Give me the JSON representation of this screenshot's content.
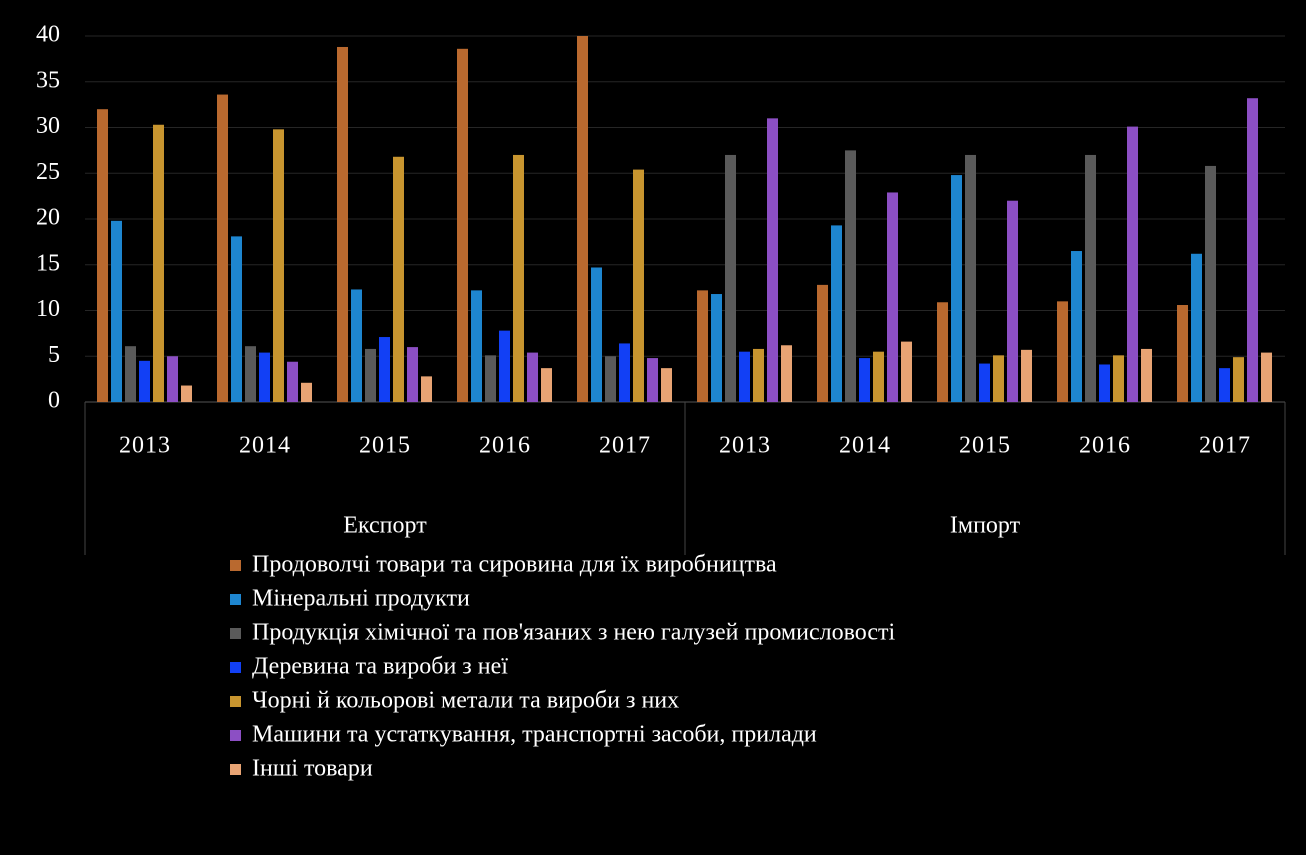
{
  "chart_data": {
    "type": "bar",
    "groups": [
      {
        "name": "Експорт",
        "categories": [
          "2013",
          "2014",
          "2015",
          "2016",
          "2017"
        ]
      },
      {
        "name": "Імпорт",
        "categories": [
          "2013",
          "2014",
          "2015",
          "2016",
          "2017"
        ]
      }
    ],
    "series": [
      {
        "name": "Продоволчі товари та сировина для їх виробництва",
        "color": "#b9692f",
        "values": [
          32,
          33.6,
          38.8,
          38.6,
          40,
          12.2,
          12.8,
          10.9,
          11,
          10.6
        ]
      },
      {
        "name": "Мінеральні продукти",
        "color": "#1e86d0",
        "values": [
          19.8,
          18.1,
          12.3,
          12.2,
          14.7,
          11.8,
          19.3,
          24.8,
          16.5,
          16.2
        ]
      },
      {
        "name": "Продукція хімічної та пов'язаних з нею галузей промисловості",
        "color": "#5a5a5a",
        "values": [
          6.1,
          6.1,
          5.8,
          5.1,
          5,
          27,
          27.5,
          27,
          27,
          25.8
        ]
      },
      {
        "name": "Деревина та вироби з неї",
        "color": "#1240f5",
        "values": [
          4.5,
          5.4,
          7.1,
          7.8,
          6.4,
          5.5,
          4.8,
          4.2,
          4.1,
          3.7
        ]
      },
      {
        "name": "Чорні й кольорові метали та вироби з них",
        "color": "#c8952f",
        "values": [
          30.3,
          29.8,
          26.8,
          27,
          25.4,
          5.8,
          5.5,
          5.1,
          5.1,
          4.9
        ]
      },
      {
        "name": "Машини та устаткування, транспортні засоби, прилади",
        "color": "#8c4fc4",
        "values": [
          5,
          4.4,
          6,
          5.4,
          4.8,
          31,
          22.9,
          22,
          30.1,
          33.2
        ]
      },
      {
        "name": "Інші товари",
        "color": "#e8a474",
        "values": [
          1.8,
          2.1,
          2.8,
          3.7,
          3.7,
          6.2,
          6.6,
          5.7,
          5.8,
          5.4
        ]
      }
    ],
    "ylim": [
      0,
      40
    ],
    "yticks": [
      0,
      5,
      10,
      15,
      20,
      25,
      30,
      35,
      40
    ],
    "legend": "bottom"
  }
}
